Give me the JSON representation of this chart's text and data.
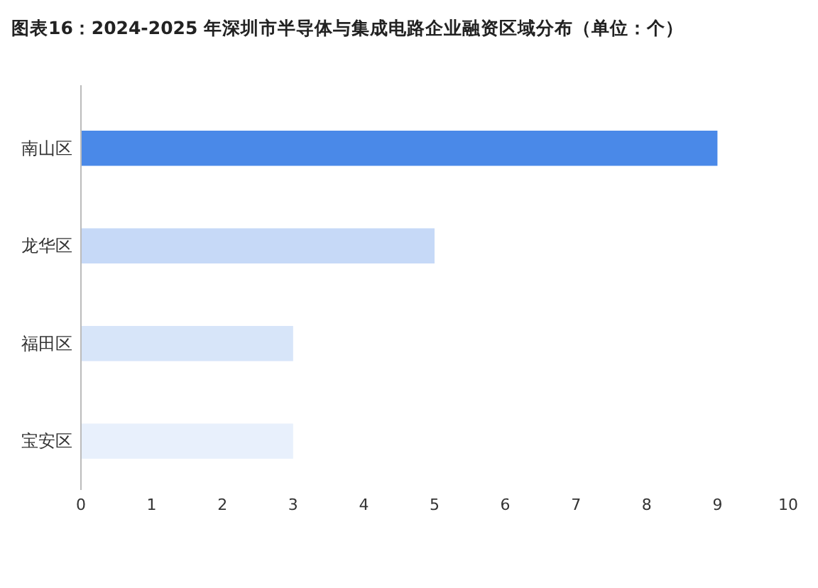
{
  "chart_data": {
    "type": "bar",
    "orientation": "horizontal",
    "title": "图表16：2024-2025 年深圳市半导体与集成电路企业融资区域分布（单位：个）",
    "categories": [
      "南山区",
      "龙华区",
      "福田区",
      "宝安区"
    ],
    "values": [
      9,
      5,
      3,
      3
    ],
    "colors": [
      "#4a89e8",
      "#c6d9f7",
      "#d7e5f9",
      "#e8f0fc"
    ],
    "xlim": [
      0,
      10
    ],
    "xticks": [
      0,
      1,
      2,
      3,
      4,
      5,
      6,
      7,
      8,
      9,
      10
    ],
    "grid": false
  }
}
